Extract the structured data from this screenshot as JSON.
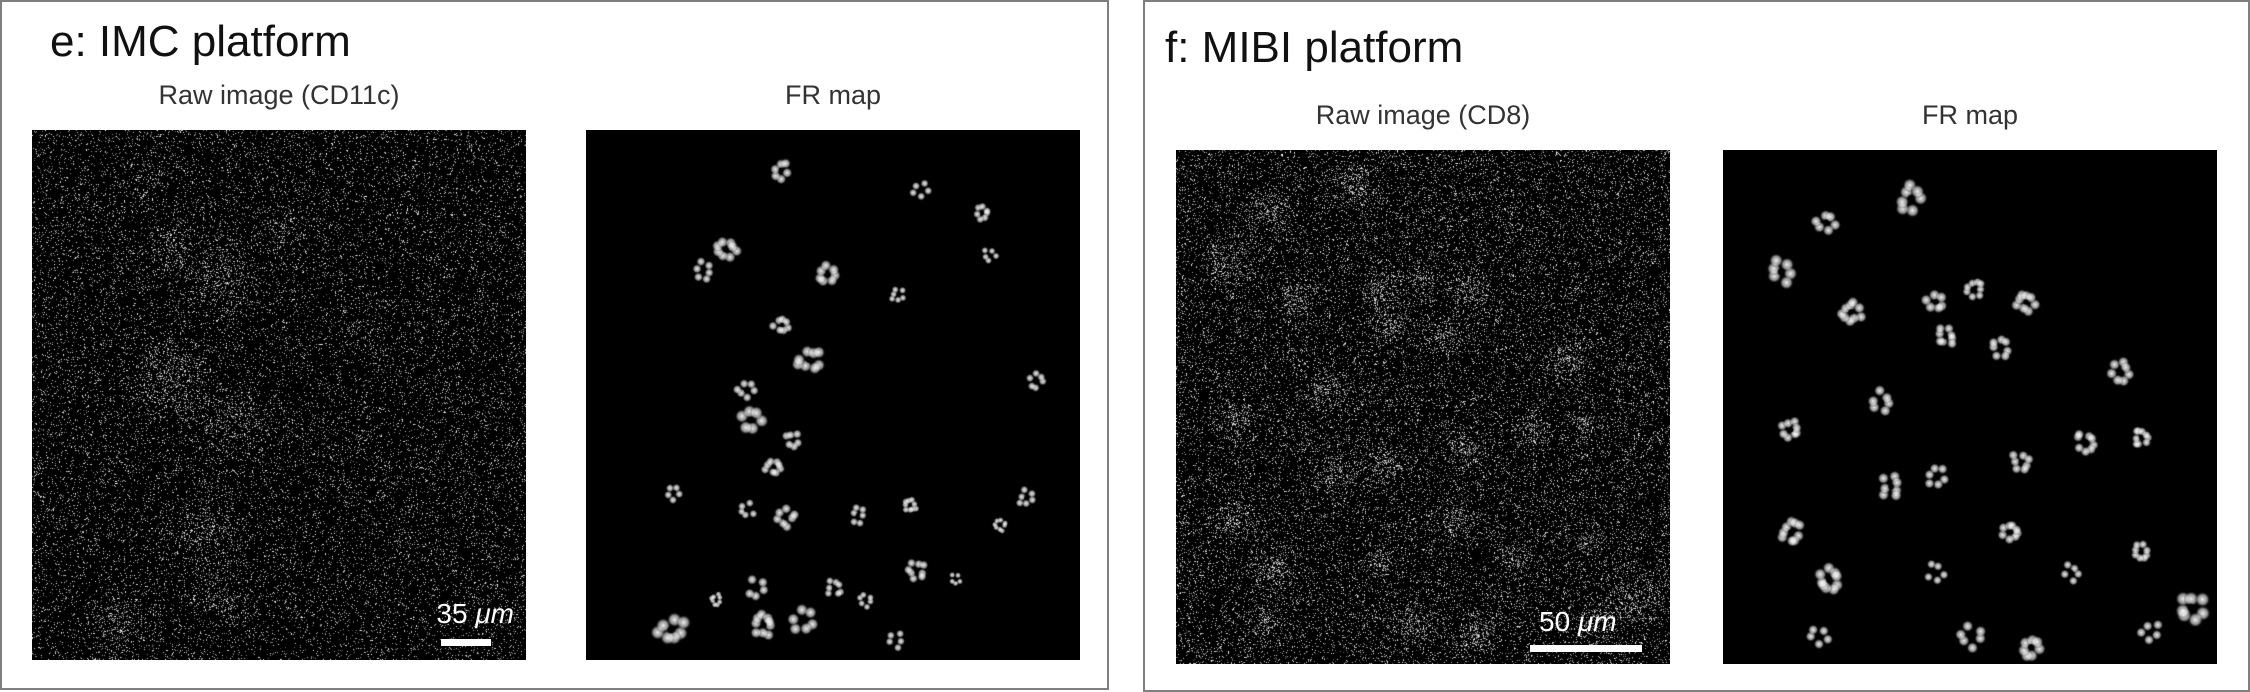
{
  "panels": [
    {
      "title": "e: IMC platform",
      "raw_label": "Raw image (CD11c)",
      "fr_label": "FR map",
      "scale_value": "35",
      "scale_unit": "μm"
    },
    {
      "title": "f: MIBI platform",
      "raw_label": "Raw image (CD8)",
      "fr_label": "FR map",
      "scale_value": "50",
      "scale_unit": "μm"
    }
  ],
  "colors": {
    "border": "#7f7f7f",
    "image_background": "#000000",
    "signal": "#ffffff"
  }
}
